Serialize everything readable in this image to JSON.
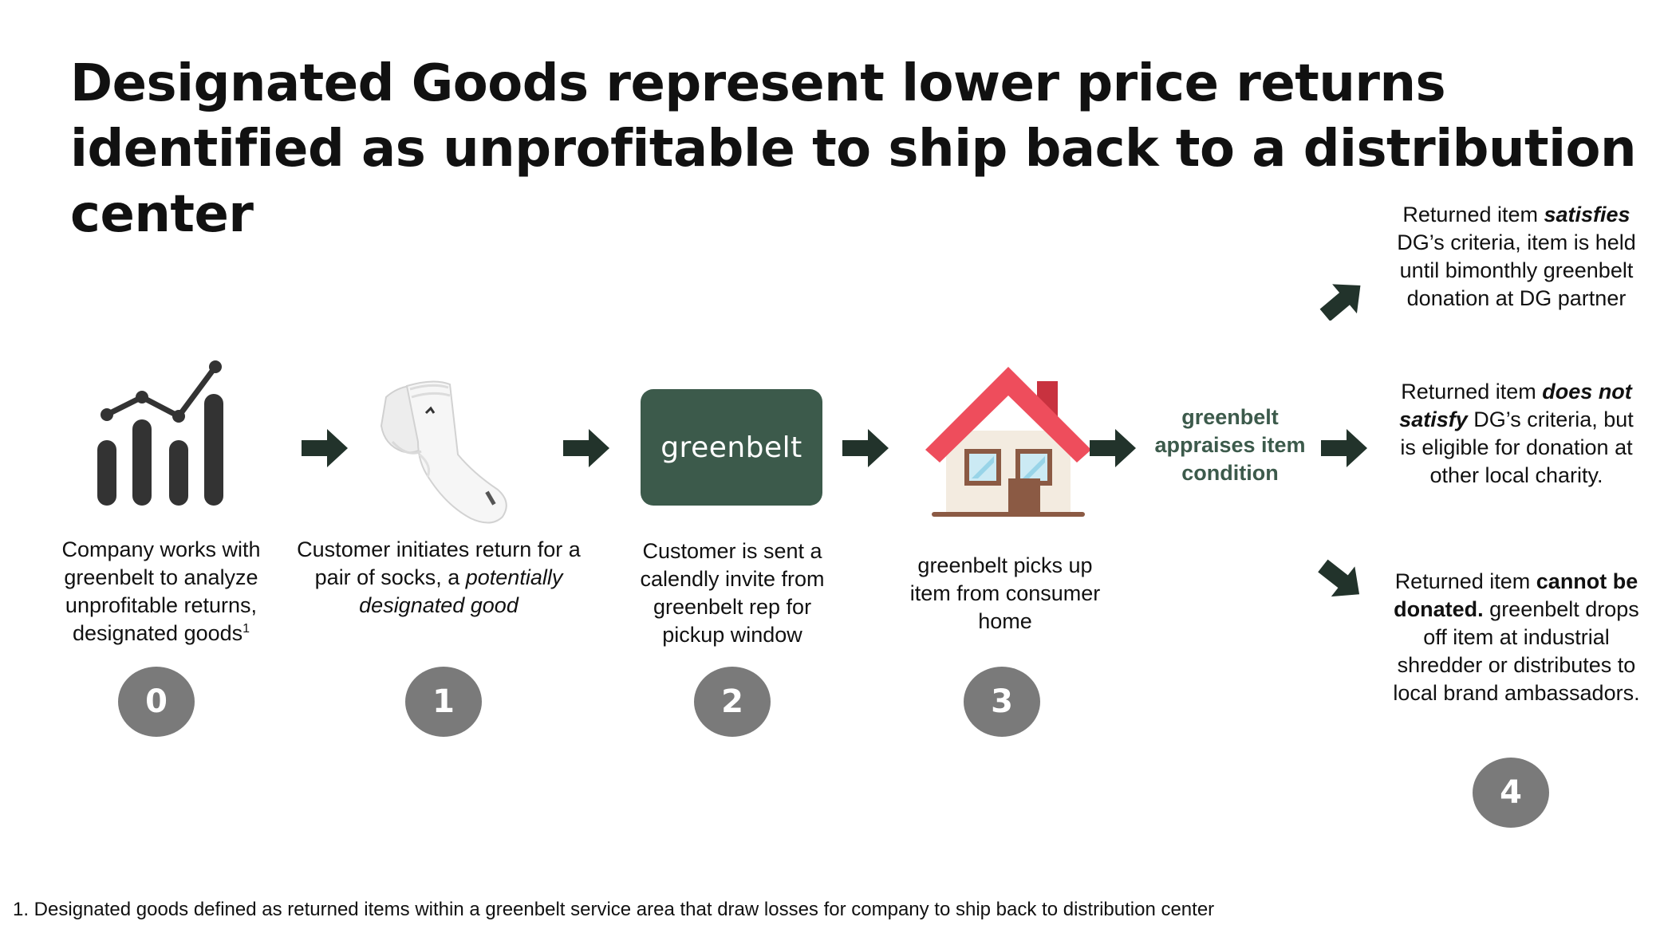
{
  "title": "Designated Goods represent lower price returns identified as unprofitable to ship back to a distribution center",
  "colors": {
    "arrow": "#22332b",
    "brand_green": "#3c5a4b",
    "step_circle": "#7a7a7a",
    "roof": "#ee4d5c"
  },
  "steps": [
    {
      "number": "0",
      "icon": "chart-growth-icon",
      "text": "Company works with greenbelt to analyze unprofitable returns, designated goods",
      "footnote_marker": "1"
    },
    {
      "number": "1",
      "icon": "socks-photo",
      "text_before": "Customer initiates return for a pair of socks, a ",
      "text_italic": "potentially designated good"
    },
    {
      "number": "2",
      "logo_text": "greenbelt",
      "text": "Customer is sent a calendly invite from greenbelt rep for pickup window"
    },
    {
      "number": "3",
      "icon": "house-icon",
      "text": "greenbelt picks up item from consumer home"
    }
  ],
  "appraise_text": "greenbelt appraises item condition",
  "outcomes": [
    {
      "pre": "Returned item ",
      "emph": "satisfies",
      "post": " DG’s criteria, item is held until bimonthly greenbelt donation at DG partner"
    },
    {
      "pre": "Returned item ",
      "emph": "does not satisfy",
      "post": " DG’s criteria, but is eligible for donation at other local charity."
    },
    {
      "pre": "Returned item ",
      "emph": "cannot be donated.",
      "post": " greenbelt drops off item at industrial  shredder or distributes to local brand ambassadors."
    }
  ],
  "step4_number": "4",
  "footnote": "1. Designated goods defined as returned items within a greenbelt service area that draw losses for company to ship back to distribution center"
}
